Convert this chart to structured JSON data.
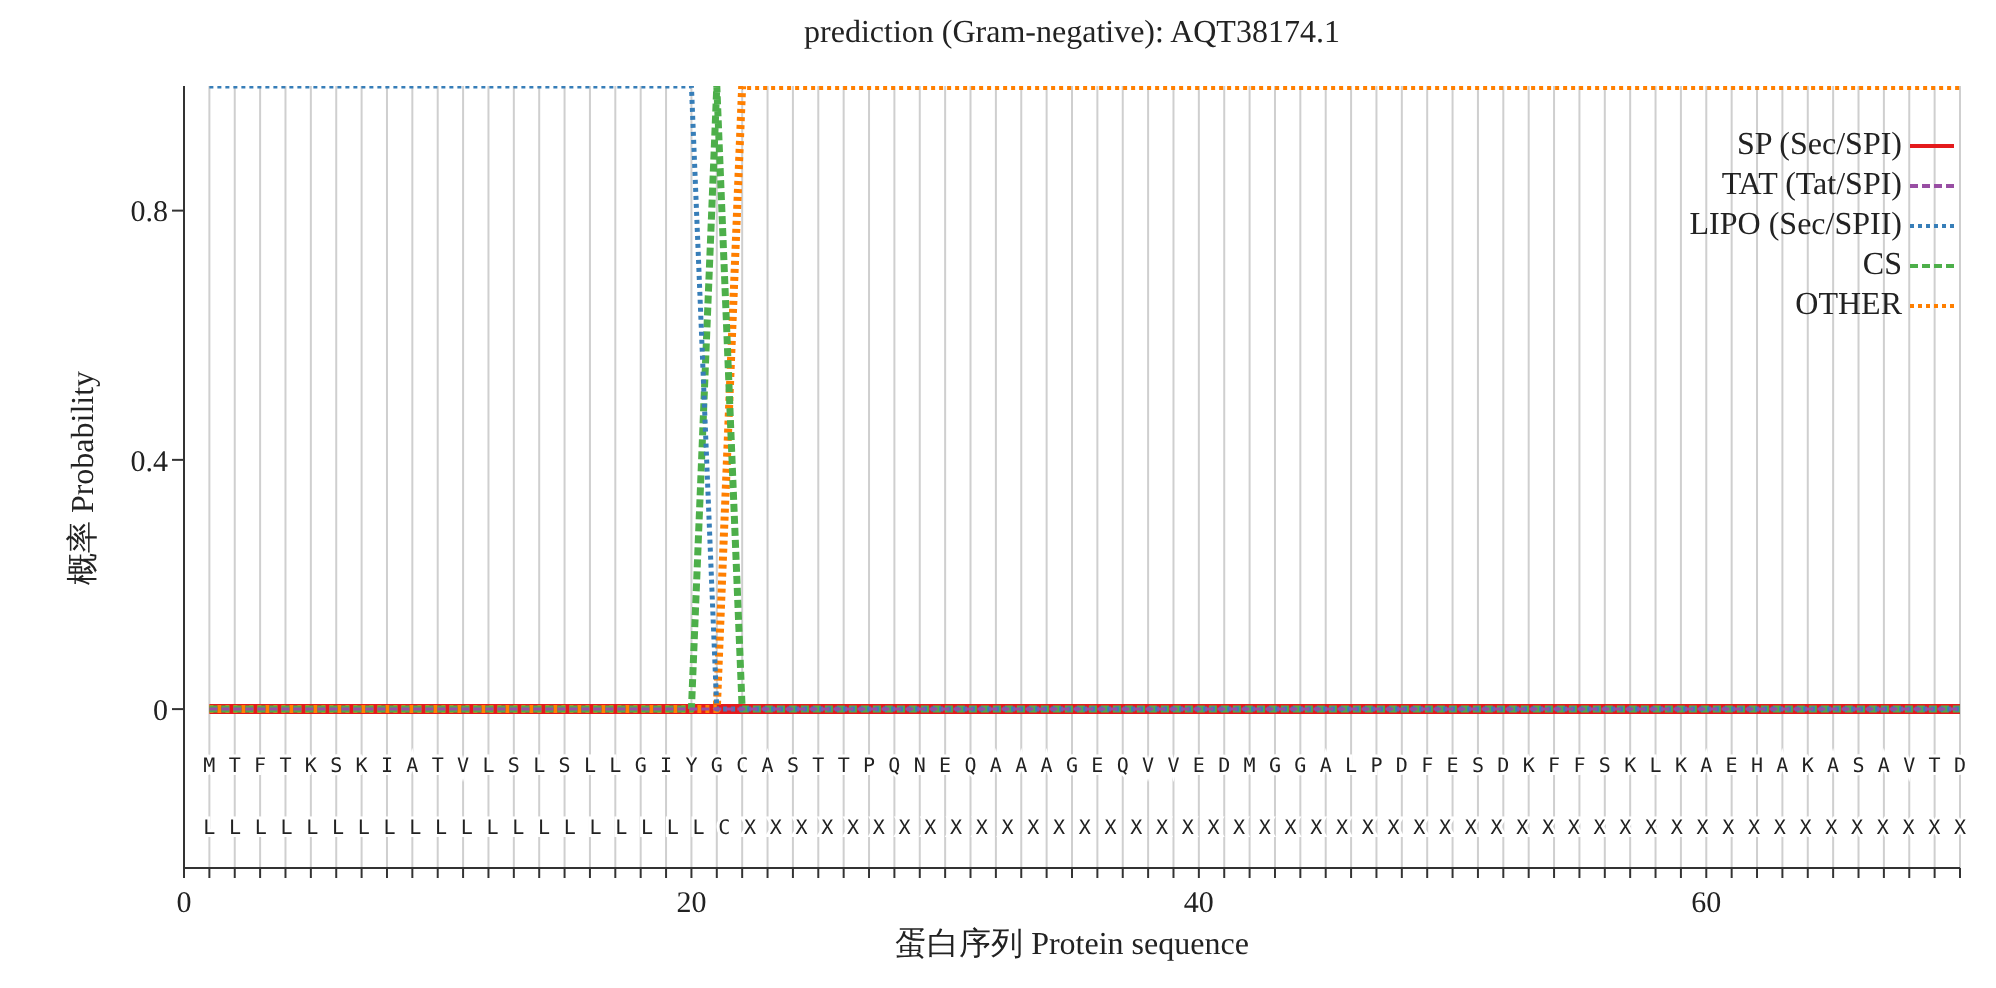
{
  "chart_data": {
    "type": "line",
    "title": "prediction (Gram-negative): AQT38174.1",
    "xlabel": "蛋白序列 Protein sequence",
    "ylabel": "概率 Probability",
    "x": [
      1,
      2,
      3,
      4,
      5,
      6,
      7,
      8,
      9,
      10,
      11,
      12,
      13,
      14,
      15,
      16,
      17,
      18,
      19,
      20,
      21,
      22,
      23,
      24,
      25,
      26,
      27,
      28,
      29,
      30,
      31,
      32,
      33,
      34,
      35,
      36,
      37,
      38,
      39,
      40,
      41,
      42,
      43,
      44,
      45,
      46,
      47,
      48,
      49,
      50,
      51,
      52,
      53,
      54,
      55,
      56,
      57,
      58,
      59,
      60,
      61,
      62,
      63,
      64,
      65,
      66,
      67,
      68,
      69,
      70
    ],
    "series": [
      {
        "name": "SP (Sec/SPI)",
        "color": "#e41a1c",
        "line_style": "solid",
        "values": [
          0,
          0,
          0,
          0,
          0,
          0,
          0,
          0,
          0,
          0,
          0,
          0,
          0,
          0,
          0,
          0,
          0,
          0,
          0,
          0,
          0,
          0,
          0,
          0,
          0,
          0,
          0,
          0,
          0,
          0,
          0,
          0,
          0,
          0,
          0,
          0,
          0,
          0,
          0,
          0,
          0,
          0,
          0,
          0,
          0,
          0,
          0,
          0,
          0,
          0,
          0,
          0,
          0,
          0,
          0,
          0,
          0,
          0,
          0,
          0,
          0,
          0,
          0,
          0,
          0,
          0,
          0,
          0,
          0,
          0
        ]
      },
      {
        "name": "TAT (Tat/SPI)",
        "color": "#984ea3",
        "line_style": "dashed",
        "values": [
          0,
          0,
          0,
          0,
          0,
          0,
          0,
          0,
          0,
          0,
          0,
          0,
          0,
          0,
          0,
          0,
          0,
          0,
          0,
          0,
          0,
          0,
          0,
          0,
          0,
          0,
          0,
          0,
          0,
          0,
          0,
          0,
          0,
          0,
          0,
          0,
          0,
          0,
          0,
          0,
          0,
          0,
          0,
          0,
          0,
          0,
          0,
          0,
          0,
          0,
          0,
          0,
          0,
          0,
          0,
          0,
          0,
          0,
          0,
          0,
          0,
          0,
          0,
          0,
          0,
          0,
          0,
          0,
          0,
          0
        ]
      },
      {
        "name": "LIPO (Sec/SPII)",
        "color": "#377eb8",
        "line_style": "dotted",
        "values": [
          1,
          1,
          1,
          1,
          1,
          1,
          1,
          1,
          1,
          1,
          1,
          1,
          1,
          1,
          1,
          1,
          1,
          1,
          1,
          1,
          0,
          0,
          0,
          0,
          0,
          0,
          0,
          0,
          0,
          0,
          0,
          0,
          0,
          0,
          0,
          0,
          0,
          0,
          0,
          0,
          0,
          0,
          0,
          0,
          0,
          0,
          0,
          0,
          0,
          0,
          0,
          0,
          0,
          0,
          0,
          0,
          0,
          0,
          0,
          0,
          0,
          0,
          0,
          0,
          0,
          0,
          0,
          0,
          0,
          0
        ]
      },
      {
        "name": "CS",
        "color": "#4daf4a",
        "line_style": "dashed",
        "values": [
          0,
          0,
          0,
          0,
          0,
          0,
          0,
          0,
          0,
          0,
          0,
          0,
          0,
          0,
          0,
          0,
          0,
          0,
          0,
          0,
          1,
          0,
          0,
          0,
          0,
          0,
          0,
          0,
          0,
          0,
          0,
          0,
          0,
          0,
          0,
          0,
          0,
          0,
          0,
          0,
          0,
          0,
          0,
          0,
          0,
          0,
          0,
          0,
          0,
          0,
          0,
          0,
          0,
          0,
          0,
          0,
          0,
          0,
          0,
          0,
          0,
          0,
          0,
          0,
          0,
          0,
          0,
          0,
          0,
          0
        ]
      },
      {
        "name": "OTHER",
        "color": "#ff7f00",
        "line_style": "dotted",
        "values": [
          0,
          0,
          0,
          0,
          0,
          0,
          0,
          0,
          0,
          0,
          0,
          0,
          0,
          0,
          0,
          0,
          0,
          0,
          0,
          0,
          0,
          1,
          1,
          1,
          1,
          1,
          1,
          1,
          1,
          1,
          1,
          1,
          1,
          1,
          1,
          1,
          1,
          1,
          1,
          1,
          1,
          1,
          1,
          1,
          1,
          1,
          1,
          1,
          1,
          1,
          1,
          1,
          1,
          1,
          1,
          1,
          1,
          1,
          1,
          1,
          1,
          1,
          1,
          1,
          1,
          1,
          1,
          1,
          1,
          1
        ]
      }
    ],
    "xlim": [
      0,
      70
    ],
    "ylim": [
      -0.255,
      1.0
    ],
    "xticks": [
      0,
      {
        "value": 1,
        "label": null
      },
      {
        "value": 2,
        "label": null
      },
      {
        "value": 3,
        "label": null
      },
      {
        "value": 4,
        "label": null
      },
      {
        "value": 5,
        "label": null
      },
      {
        "value": 6,
        "label": null
      },
      {
        "value": 7,
        "label": null
      },
      {
        "value": 8,
        "label": null
      },
      {
        "value": 9,
        "label": null
      },
      {
        "value": 10,
        "label": null
      },
      {
        "value": 11,
        "label": null
      },
      {
        "value": 12,
        "label": null
      },
      {
        "value": 13,
        "label": null
      },
      {
        "value": 14,
        "label": null
      },
      {
        "value": 15,
        "label": null
      },
      {
        "value": 16,
        "label": null
      },
      {
        "value": 17,
        "label": null
      },
      {
        "value": 18,
        "label": null
      },
      {
        "value": 19,
        "label": null
      },
      20,
      {
        "value": 21,
        "label": null
      },
      {
        "value": 22,
        "label": null
      },
      {
        "value": 23,
        "label": null
      },
      {
        "value": 24,
        "label": null
      },
      {
        "value": 25,
        "label": null
      },
      {
        "value": 26,
        "label": null
      },
      {
        "value": 27,
        "label": null
      },
      {
        "value": 28,
        "label": null
      },
      {
        "value": 29,
        "label": null
      },
      {
        "value": 30,
        "label": null
      },
      {
        "value": 31,
        "label": null
      },
      {
        "value": 32,
        "label": null
      },
      {
        "value": 33,
        "label": null
      },
      {
        "value": 34,
        "label": null
      },
      {
        "value": 35,
        "label": null
      },
      {
        "value": 36,
        "label": null
      },
      {
        "value": 37,
        "label": null
      },
      {
        "value": 38,
        "label": null
      },
      {
        "value": 39,
        "label": null
      },
      40,
      {
        "value": 41,
        "label": null
      },
      {
        "value": 42,
        "label": null
      },
      {
        "value": 43,
        "label": null
      },
      {
        "value": 44,
        "label": null
      },
      {
        "value": 45,
        "label": null
      },
      {
        "value": 46,
        "label": null
      },
      {
        "value": 47,
        "label": null
      },
      {
        "value": 48,
        "label": null
      },
      {
        "value": 49,
        "label": null
      },
      {
        "value": 50,
        "label": null
      },
      {
        "value": 51,
        "label": null
      },
      {
        "value": 52,
        "label": null
      },
      {
        "value": 53,
        "label": null
      },
      {
        "value": 54,
        "label": null
      },
      {
        "value": 55,
        "label": null
      },
      {
        "value": 56,
        "label": null
      },
      {
        "value": 57,
        "label": null
      },
      {
        "value": 58,
        "label": null
      },
      {
        "value": 59,
        "label": null
      },
      60,
      {
        "value": 61,
        "label": null
      },
      {
        "value": 62,
        "label": null
      },
      {
        "value": 63,
        "label": null
      },
      {
        "value": 64,
        "label": null
      },
      {
        "value": 65,
        "label": null
      },
      {
        "value": 66,
        "label": null
      },
      {
        "value": 67,
        "label": null
      },
      {
        "value": 68,
        "label": null
      },
      {
        "value": 69,
        "label": null
      },
      {
        "value": 70,
        "label": null
      }
    ],
    "yticks": [
      0,
      0.4,
      0.8
    ],
    "grid": "x",
    "legend": "top right",
    "marker": "none",
    "annotations": [
      "M T F T K S K I A T V L S L S L L G I Y G C A S T T P Q N E Q A A A G E Q V V E D M G G A L P D F E S D K F F S K L K A E H A K A S A V T D",
      "L L L L L L L L L L L L L L L L L L L L C X X X X X X X X X X X X X X X X X X X X X X X X X X X X X X X X X X X X X X X X X X X X X X X X"
    ]
  }
}
